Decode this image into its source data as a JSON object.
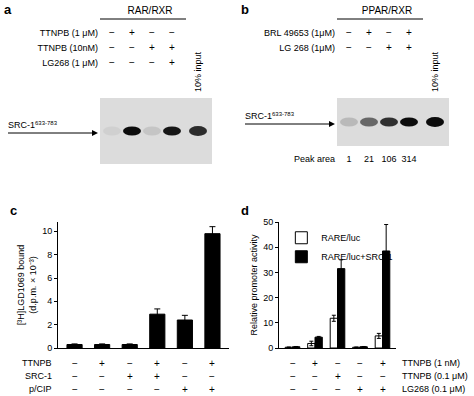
{
  "blots": [
    {
      "label": "a",
      "title": "RAR/RXR",
      "rows": [
        {
          "name": "TTNPB (1 μM)",
          "signs": [
            "−",
            "+",
            "−",
            "−"
          ]
        },
        {
          "name": "TTNPB (10nM)",
          "signs": [
            "−",
            "−",
            "+",
            "+"
          ]
        },
        {
          "name": "LG268 (1 μM)",
          "signs": [
            "−",
            "−",
            "−",
            "+"
          ]
        }
      ],
      "input_label": "10% input",
      "band_label": "SRC-1",
      "band_superscript": "633-783",
      "band_intensity": [
        0.05,
        0.95,
        0.1,
        0.9
      ],
      "input_intensity": 0.8
    },
    {
      "label": "b",
      "title": "PPAR/RXR",
      "rows": [
        {
          "name": "BRL 49653 (1μM)",
          "signs": [
            "−",
            "+",
            "−",
            "+"
          ]
        },
        {
          "name": "LG 268 (1μM)",
          "signs": [
            "−",
            "−",
            "+",
            "+"
          ]
        }
      ],
      "input_label": "10% input",
      "band_label": "SRC-1",
      "band_superscript": "633-783",
      "peak_area_label": "Peak area",
      "peak_area": [
        1,
        21,
        106,
        314
      ],
      "input_intensity": 0.95
    }
  ],
  "chart_data": [
    {
      "type": "bar",
      "title": "c",
      "ylabel": [
        "[³H]LGD1069 bound",
        "(d.p.m. × 10⁻³)"
      ],
      "categories": [
        null,
        null,
        null,
        null,
        null,
        null
      ],
      "values": [
        0.3,
        0.3,
        0.3,
        2.9,
        2.4,
        9.8
      ],
      "errors": [
        0.05,
        0.05,
        0.05,
        0.45,
        0.4,
        0.6
      ],
      "color": "#000000",
      "ylim": [
        0,
        10.8
      ],
      "yticks": [
        0,
        2,
        4,
        6,
        8,
        10
      ],
      "grid": false,
      "tick_labels": "y",
      "conditions": [
        {
          "name": "TTNPB",
          "signs": [
            "−",
            "+",
            "−",
            "+",
            "−",
            "+"
          ]
        },
        {
          "name": "SRC-1",
          "signs": [
            "−",
            "−",
            "+",
            "+",
            "−",
            "−"
          ]
        },
        {
          "name": "p/CIP",
          "signs": [
            "−",
            "−",
            "−",
            "−",
            "+",
            "+"
          ]
        }
      ]
    },
    {
      "type": "bar",
      "title": "d",
      "ylabel": [
        "Relative promoter activity"
      ],
      "categories": [
        null,
        null,
        null,
        null,
        null
      ],
      "series": [
        {
          "name": "RARE/luc",
          "color": "#ffffff",
          "values": [
            0.3,
            1.8,
            11.8,
            0.3,
            4.8
          ],
          "errors": [
            0.1,
            0.9,
            1.2,
            0.1,
            1.0
          ]
        },
        {
          "name": "RARE/luc+SRC-1",
          "color": "#000000",
          "values": [
            0.5,
            4.3,
            31.5,
            0.5,
            38.5
          ],
          "errors": [
            0.1,
            0.3,
            3.5,
            0.1,
            10.5
          ]
        }
      ],
      "ylim": [
        0,
        50
      ],
      "yticks": [
        0,
        10,
        20,
        30,
        40,
        50
      ],
      "grid": false,
      "tick_labels": "y",
      "legend": "upper left",
      "conditions": [
        {
          "name": "TTNPB (1 nM)",
          "signs": [
            "−",
            "+",
            "−",
            "−",
            "+"
          ]
        },
        {
          "name": "TTNPB (0.1 μM)",
          "signs": [
            "−",
            "−",
            "+",
            "−",
            "−"
          ]
        },
        {
          "name": "LG268 (0.1 μM)",
          "signs": [
            "−",
            "−",
            "−",
            "+",
            "+"
          ]
        }
      ]
    }
  ]
}
